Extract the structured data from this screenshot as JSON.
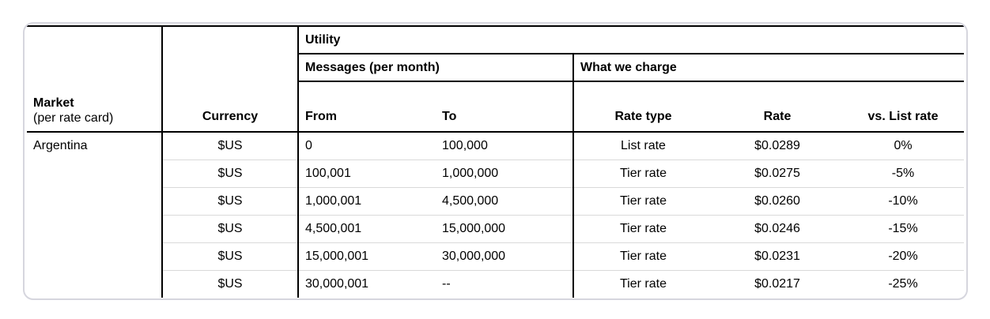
{
  "card": {
    "header": {
      "market_title": "Market",
      "market_subtitle": "(per rate card)",
      "currency": "Currency",
      "utility_group": "Utility",
      "messages_group": "Messages (per month)",
      "charge_group": "What we charge",
      "from": "From",
      "to": "To",
      "rate_type": "Rate type",
      "rate": "Rate",
      "vs_list_rate": "vs. List rate"
    },
    "market_name": "Argentina",
    "rows": [
      {
        "currency": "$US",
        "from": "0",
        "to": "100,000",
        "rate_type": "List rate",
        "rate": "$0.0289",
        "vs_list_rate": "0%"
      },
      {
        "currency": "$US",
        "from": "100,001",
        "to": "1,000,000",
        "rate_type": "Tier rate",
        "rate": "$0.0275",
        "vs_list_rate": "-5%"
      },
      {
        "currency": "$US",
        "from": "1,000,001",
        "to": "4,500,000",
        "rate_type": "Tier rate",
        "rate": "$0.0260",
        "vs_list_rate": "-10%"
      },
      {
        "currency": "$US",
        "from": "4,500,001",
        "to": "15,000,000",
        "rate_type": "Tier rate",
        "rate": "$0.0246",
        "vs_list_rate": "-15%"
      },
      {
        "currency": "$US",
        "from": "15,000,001",
        "to": "30,000,000",
        "rate_type": "Tier rate",
        "rate": "$0.0231",
        "vs_list_rate": "-20%"
      },
      {
        "currency": "$US",
        "from": "30,000,001",
        "to": "--",
        "rate_type": "Tier rate",
        "rate": "$0.0217",
        "vs_list_rate": "-25%"
      }
    ]
  },
  "colors": {
    "line": "#000000",
    "row_divider": "#d9d9d9",
    "card_border": "#d6d6de",
    "background": "#ffffff"
  }
}
